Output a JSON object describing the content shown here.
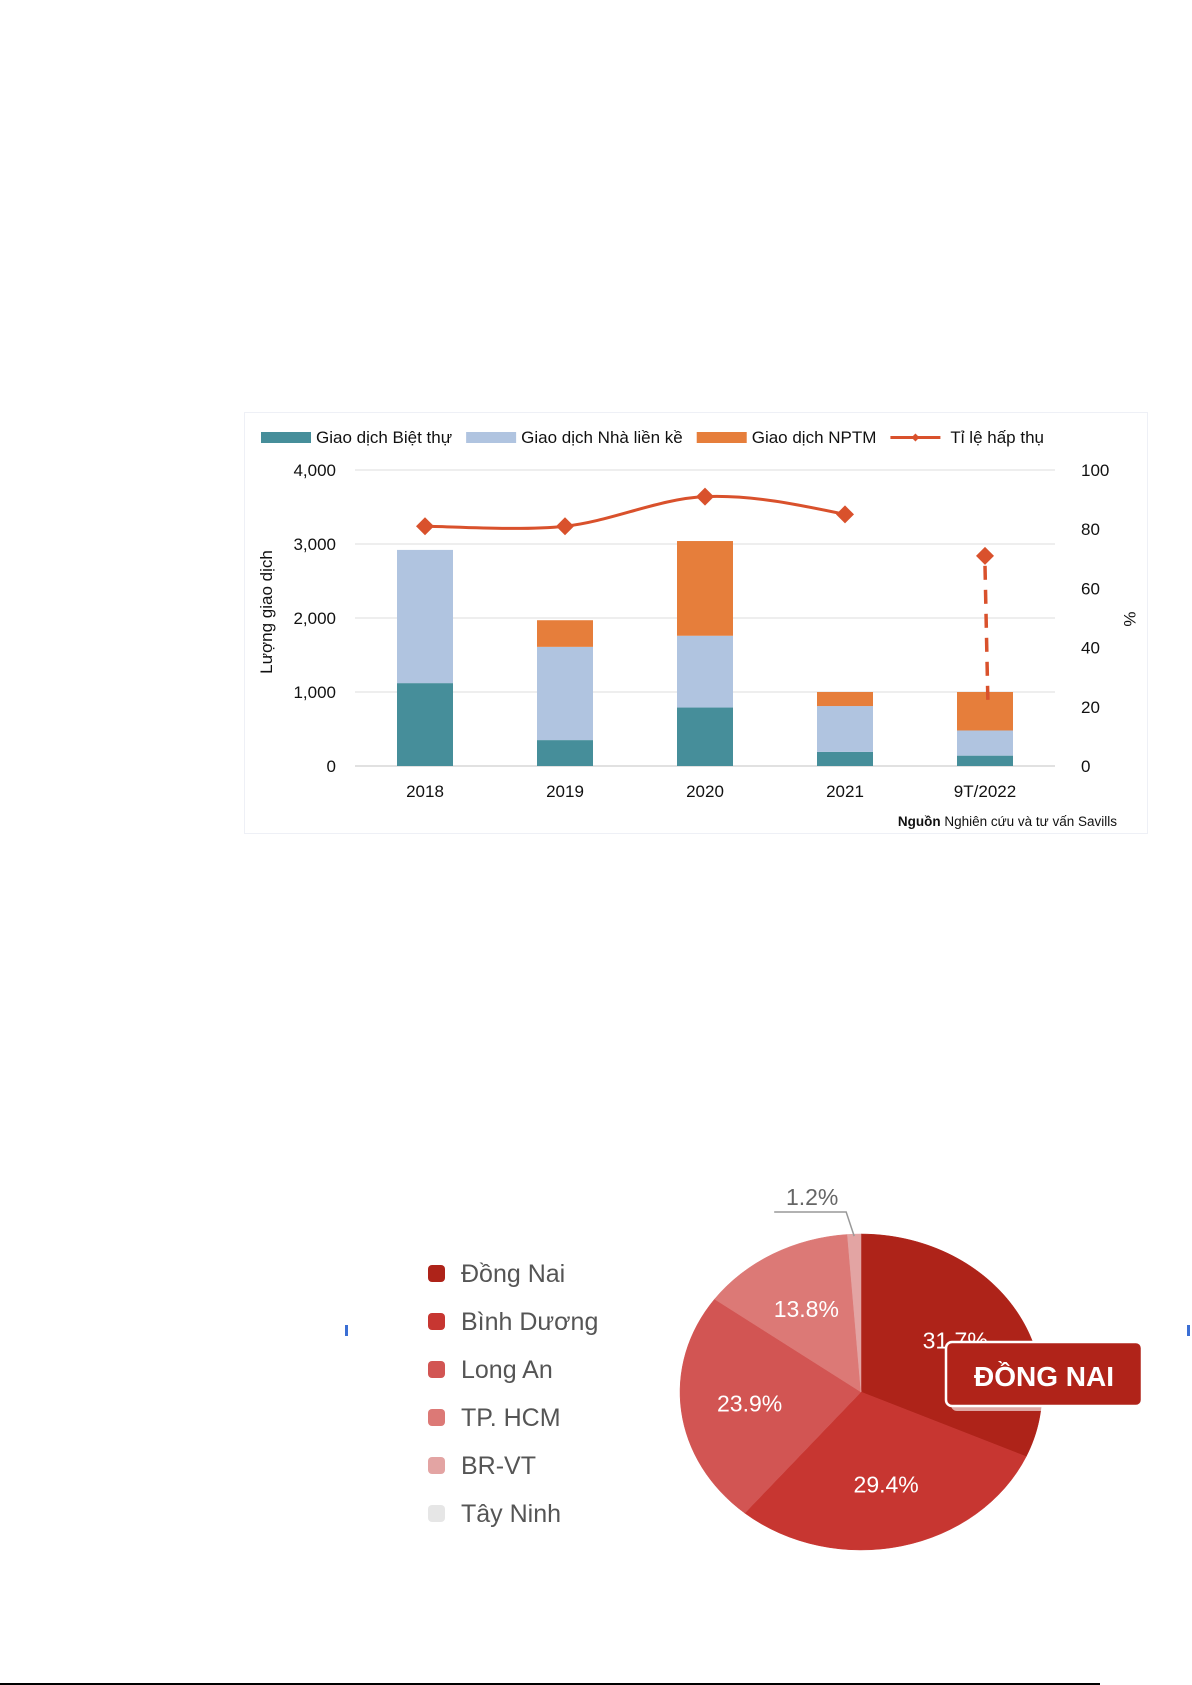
{
  "chart_data": [
    {
      "type": "bar",
      "stacked": true,
      "categories": [
        "2018",
        "2019",
        "2020",
        "2021",
        "9T/2022"
      ],
      "series": [
        {
          "name": "Giao dịch Biệt thự",
          "color": "#468e9a",
          "values": [
            1120,
            350,
            790,
            190,
            140
          ]
        },
        {
          "name": "Giao dịch Nhà liền kề",
          "color": "#b0c4e0",
          "values": [
            1800,
            1260,
            970,
            620,
            340
          ]
        },
        {
          "name": "Giao dịch NPTM",
          "color": "#e67e3b",
          "values": [
            0,
            360,
            1280,
            190,
            520
          ]
        }
      ],
      "line": {
        "name": "Tỉ lệ hấp thụ",
        "color": "#d9512c",
        "axis": "right",
        "values": [
          81,
          81,
          91,
          85,
          71
        ]
      },
      "ylabel": "Lượng giao dịch",
      "y2label": "%",
      "ylim": [
        0,
        4000
      ],
      "y2lim": [
        0,
        100
      ],
      "yticks": [
        "4,000",
        "3,000",
        "2,000",
        "1,000",
        "0"
      ],
      "y2ticks": [
        "100",
        "80",
        "60",
        "40",
        "20",
        "0"
      ],
      "grid": true,
      "legend": "top",
      "source_bold": "Nguồn",
      "source_rest": " Nghiên cứu và tư vấn Savills"
    },
    {
      "type": "pie",
      "categories": [
        "Đồng Nai",
        "Bình Dương",
        "Long An",
        "TP. HCM",
        "BR-VT",
        "Tây Ninh"
      ],
      "values": [
        31.7,
        29.4,
        23.9,
        13.8,
        1.2,
        0
      ],
      "labels": [
        "31.7%",
        "29.4%",
        "23.9%",
        "13.8%",
        "1.2%"
      ],
      "colors": [
        "#ae2319",
        "#c73631",
        "#d25553",
        "#dc7976",
        "#e3a4a3",
        "#e6e6e6"
      ],
      "legend": "left",
      "callout": "ĐỒNG NAI"
    }
  ]
}
